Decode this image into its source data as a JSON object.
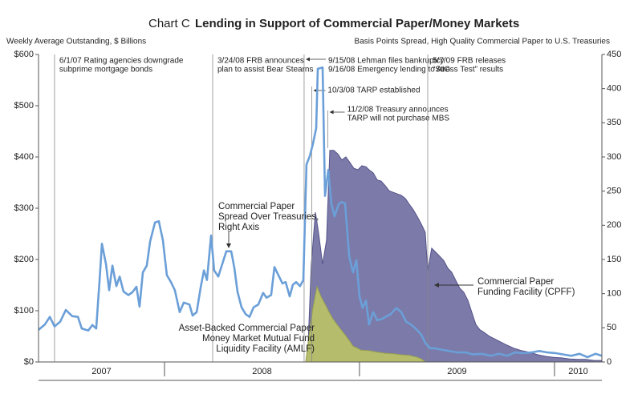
{
  "chart_data": {
    "type": "area-line",
    "chart_label": "Chart C",
    "title": "Lending in Support of Commercial Paper/Money Markets",
    "y_axis_label": "Weekly Average Outstanding, $ Billions",
    "y2_axis_label": "Basis Points Spread, High Quality Commercial Paper to U.S. Treasuries",
    "xlim": [
      2007.354,
      2010.243
    ],
    "xticks": [
      2008,
      2009,
      2010
    ],
    "year_labels": [
      "2007",
      "2008",
      "2009",
      "2010"
    ],
    "ylim": [
      0,
      600
    ],
    "yticks": [
      {
        "value": 0,
        "label": "$0"
      },
      {
        "value": 100,
        "label": "$100"
      },
      {
        "value": 200,
        "label": "$200"
      },
      {
        "value": 300,
        "label": "$300"
      },
      {
        "value": 400,
        "label": "$400"
      },
      {
        "value": 500,
        "label": "$500"
      },
      {
        "value": 600,
        "label": "$600"
      }
    ],
    "y2lim": [
      0,
      450
    ],
    "y2ticks": [
      0,
      50,
      100,
      150,
      200,
      250,
      300,
      350,
      400,
      450
    ],
    "series": [
      {
        "label": [
          "Commercial Paper",
          "Funding Facility (CPFF)"
        ],
        "kind": "area",
        "color": "#7b7aa8",
        "edge": "#55538a",
        "x": [
          2008.733,
          2008.753,
          2008.774,
          2008.79,
          2008.811,
          2008.831,
          2008.848,
          2008.868,
          2008.889,
          2008.909,
          2008.93,
          2008.951,
          2008.971,
          2008.992,
          2009.012,
          2009.033,
          2009.049,
          2009.07,
          2009.091,
          2009.111,
          2009.132,
          2009.152,
          2009.173,
          2009.193,
          2009.214,
          2009.235,
          2009.255,
          2009.276,
          2009.296,
          2009.317,
          2009.337,
          2009.35,
          2009.37,
          2009.391,
          2009.412,
          2009.432,
          2009.453,
          2009.473,
          2009.494,
          2009.514,
          2009.535,
          2009.556,
          2009.576,
          2009.597,
          2009.617,
          2009.638,
          2009.667,
          2009.708,
          2009.749,
          2009.79,
          2009.831,
          2009.872,
          2009.914,
          2009.955,
          2009.996,
          2010.037,
          2010.078,
          2010.119,
          2010.16,
          2010.202,
          2010.243
        ],
        "values": [
          0,
          191,
          292,
          253,
          191,
          238,
          413,
          413,
          406,
          394,
          400,
          389,
          378,
          375,
          383,
          381,
          375,
          369,
          355,
          353,
          344,
          334,
          331,
          328,
          325,
          319,
          308,
          297,
          284,
          269,
          253,
          178,
          222,
          214,
          206,
          198,
          183,
          175,
          159,
          144,
          136,
          120,
          97,
          73,
          63,
          58,
          50,
          42,
          34,
          27,
          22,
          19,
          14,
          11,
          9,
          8,
          6,
          5,
          5,
          3,
          3
        ]
      },
      {
        "label": [
          "Asset-Backed Commercial Paper",
          "Money Market Mutual Fund",
          "Liquidity Facility (AMLF)"
        ],
        "kind": "area",
        "color": "#b5bd6c",
        "edge": "#9aa24f",
        "x": [
          2008.724,
          2008.741,
          2008.761,
          2008.782,
          2008.802,
          2008.823,
          2008.844,
          2008.864,
          2008.885,
          2008.905,
          2008.926,
          2008.947,
          2008.967,
          2008.988,
          2009.008,
          2009.049,
          2009.091,
          2009.132,
          2009.173,
          2009.214,
          2009.255,
          2009.296,
          2009.317,
          2009.337
        ],
        "values": [
          0,
          50,
          105,
          147,
          128,
          113,
          97,
          84,
          73,
          63,
          53,
          42,
          31,
          27,
          23,
          22,
          19,
          17,
          16,
          14,
          13,
          9,
          6,
          0
        ]
      },
      {
        "label": [
          "Commercial Paper",
          "Spread Over Treasuries,",
          "Right Axis"
        ],
        "kind": "line",
        "axis": "y2",
        "color": "#6b9fd8",
        "x": [
          2007.354,
          2007.387,
          2007.412,
          2007.436,
          2007.465,
          2007.494,
          2007.527,
          2007.556,
          2007.576,
          2007.609,
          2007.63,
          2007.65,
          2007.667,
          2007.679,
          2007.7,
          2007.716,
          2007.733,
          2007.753,
          2007.77,
          2007.79,
          2007.815,
          2007.835,
          2007.856,
          2007.872,
          2007.889,
          2007.909,
          2007.926,
          2007.951,
          2007.971,
          2007.992,
          2008.012,
          2008.033,
          2008.053,
          2008.078,
          2008.099,
          2008.128,
          2008.144,
          2008.165,
          2008.185,
          2008.202,
          2008.218,
          2008.239,
          2008.255,
          2008.276,
          2008.296,
          2008.317,
          2008.342,
          2008.358,
          2008.374,
          2008.395,
          2008.416,
          2008.436,
          2008.457,
          2008.481,
          2008.506,
          2008.523,
          2008.547,
          2008.564,
          2008.584,
          2008.605,
          2008.621,
          2008.642,
          2008.658,
          2008.675,
          2008.695,
          2008.712,
          2008.728,
          2008.745,
          2008.761,
          2008.778,
          2008.786,
          2008.811,
          2008.823,
          2008.84,
          2008.856,
          2008.872,
          2008.893,
          2008.909,
          2008.926,
          2008.947,
          2008.967,
          2008.984,
          2009.0,
          2009.016,
          2009.033,
          2009.049,
          2009.07,
          2009.091,
          2009.115,
          2009.14,
          2009.16,
          2009.189,
          2009.214,
          2009.239,
          2009.263,
          2009.288,
          2009.317,
          2009.337,
          2009.362,
          2009.387,
          2009.42,
          2009.461,
          2009.502,
          2009.543,
          2009.584,
          2009.626,
          2009.675,
          2009.716,
          2009.757,
          2009.798,
          2009.84,
          2009.881,
          2009.922,
          2009.963,
          2010.004,
          2010.045,
          2010.086,
          2010.128,
          2010.169,
          2010.21,
          2010.243
        ],
        "values": [
          47,
          55,
          66,
          52,
          59,
          76,
          67,
          66,
          49,
          46,
          54,
          49,
          120,
          173,
          143,
          105,
          141,
          111,
          125,
          103,
          98,
          102,
          110,
          81,
          131,
          141,
          176,
          204,
          206,
          178,
          127,
          117,
          105,
          73,
          87,
          84,
          68,
          73,
          108,
          134,
          120,
          185,
          134,
          125,
          143,
          162,
          162,
          138,
          103,
          80,
          70,
          66,
          80,
          84,
          101,
          94,
          98,
          139,
          127,
          115,
          117,
          96,
          113,
          117,
          111,
          120,
          289,
          301,
          319,
          342,
          429,
          431,
          243,
          281,
          231,
          213,
          231,
          234,
          232,
          155,
          131,
          149,
          96,
          79,
          90,
          55,
          73,
          61,
          63,
          67,
          70,
          79,
          73,
          59,
          55,
          49,
          40,
          28,
          20,
          20,
          18,
          16,
          14,
          14,
          11,
          12,
          9,
          12,
          9,
          14,
          13,
          14,
          16,
          14,
          13,
          11,
          9,
          12,
          7,
          12,
          9
        ]
      }
    ],
    "events": [
      {
        "x": 2007.436,
        "label": [
          "6/1/07 Rating agencies downgrade",
          "subprime mortgage bonds"
        ]
      },
      {
        "x": 2008.247,
        "label": [
          "3/24/08 FRB announces",
          "plan to assist Bear Stearns"
        ]
      },
      {
        "x": 2008.716,
        "label": [
          "9/15/08 Lehman files bankruptcy",
          "9/16/08 Emergency lending to AIG"
        ]
      },
      {
        "x": 2008.755,
        "label": [
          "10/3/08 TARP established"
        ]
      },
      {
        "x": 2008.838,
        "label": [
          "11/2/08 Treasury announces",
          "TARP will not purchase MBS"
        ]
      },
      {
        "x": 2009.35,
        "label": [
          "5/7/09 FRB releases",
          "“Stress Test” results"
        ]
      }
    ]
  }
}
